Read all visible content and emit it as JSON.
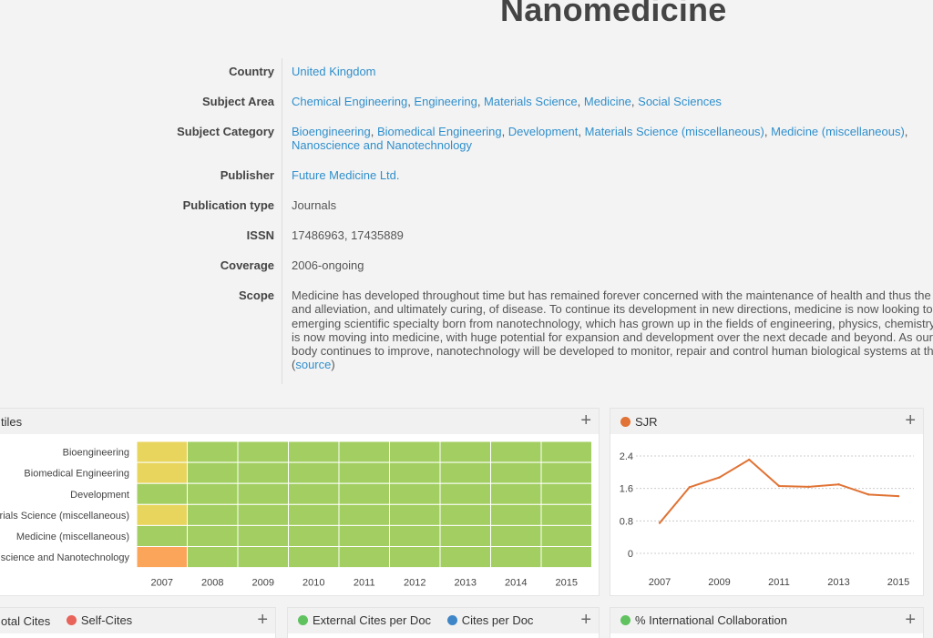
{
  "journal": {
    "title": "Nanomedicine"
  },
  "info": {
    "country": {
      "label": "Country",
      "value": "United Kingdom"
    },
    "subject_area": {
      "label": "Subject Area",
      "items": [
        "Chemical Engineering",
        "Engineering",
        "Materials Science",
        "Medicine",
        "Social Sciences"
      ]
    },
    "subject_category": {
      "label": "Subject Category",
      "items": [
        "Bioengineering",
        "Biomedical Engineering",
        "Development",
        "Materials Science (miscellaneous)",
        "Medicine (miscellaneous)",
        "Nanoscience and Nanotechnology"
      ]
    },
    "publisher": {
      "label": "Publisher",
      "value": "Future Medicine Ltd."
    },
    "publication_type": {
      "label": "Publication type",
      "value": "Journals"
    },
    "issn": {
      "label": "ISSN",
      "value": "17486963, 17435889"
    },
    "coverage": {
      "label": "Coverage",
      "value": "2006-ongoing"
    },
    "scope": {
      "label": "Scope",
      "lines": [
        "Medicine has developed throughout time but has remained forever concerned with the maintenance of health and thus the sc",
        "and alleviation, and ultimately curing, of disease. To continue its development in new directions, medicine is now looking to n",
        "emerging scientific specialty born from nanotechnology, which has grown up in the fields of engineering, physics, chemistry a",
        "is now moving into medicine, with huge potential for expansion and development over the next decade and beyond. As our kn",
        "body continues to improve, nanotechnology will be developed to monitor, repair and control human biological systems at the"
      ],
      "source_open": "(",
      "source_link": "source",
      "source_close": ")"
    }
  },
  "quartiles_card": {
    "title": "tiles",
    "colors": {
      "Q1": "#a3cf62",
      "Q2": "#e8d55e",
      "Q3": "#fba55a"
    }
  },
  "sjr_card": {
    "title": "SJR",
    "color": "#e07335"
  },
  "bottom_cards": {
    "cites": {
      "legend": [
        {
          "label": "otal Cites",
          "color": "#4a90d9"
        },
        {
          "label": "Self-Cites",
          "color": "#e8635a"
        }
      ]
    },
    "cites_per_doc": {
      "legend": [
        {
          "label": "External Cites per Doc",
          "color": "#5fc25f"
        },
        {
          "label": "Cites per Doc",
          "color": "#3f86c8"
        }
      ]
    },
    "collab": {
      "legend": [
        {
          "label": "% International Collaboration",
          "color": "#5fc25f"
        }
      ]
    }
  },
  "plus_label": "+",
  "chart_data": [
    {
      "type": "heatmap",
      "title": "tiles",
      "rows": [
        "Bioengineering",
        "Biomedical Engineering",
        "Development",
        "rials Science (miscellaneous)",
        "Medicine (miscellaneous)",
        "science and Nanotechnology"
      ],
      "columns": [
        "2007",
        "2008",
        "2009",
        "2010",
        "2011",
        "2012",
        "2013",
        "2014",
        "2015"
      ],
      "values": [
        [
          "Q2",
          "Q1",
          "Q1",
          "Q1",
          "Q1",
          "Q1",
          "Q1",
          "Q1",
          "Q1"
        ],
        [
          "Q2",
          "Q1",
          "Q1",
          "Q1",
          "Q1",
          "Q1",
          "Q1",
          "Q1",
          "Q1"
        ],
        [
          "Q1",
          "Q1",
          "Q1",
          "Q1",
          "Q1",
          "Q1",
          "Q1",
          "Q1",
          "Q1"
        ],
        [
          "Q2",
          "Q1",
          "Q1",
          "Q1",
          "Q1",
          "Q1",
          "Q1",
          "Q1",
          "Q1"
        ],
        [
          "Q1",
          "Q1",
          "Q1",
          "Q1",
          "Q1",
          "Q1",
          "Q1",
          "Q1",
          "Q1"
        ],
        [
          "Q3",
          "Q1",
          "Q1",
          "Q1",
          "Q1",
          "Q1",
          "Q1",
          "Q1",
          "Q1"
        ]
      ]
    },
    {
      "type": "line",
      "title": "SJR",
      "x": [
        2007,
        2008,
        2009,
        2010,
        2011,
        2012,
        2013,
        2014,
        2015
      ],
      "xticks": [
        "2007",
        "2009",
        "2011",
        "2013",
        "2015"
      ],
      "series": [
        {
          "name": "SJR",
          "values": [
            0.75,
            1.63,
            1.87,
            2.31,
            1.66,
            1.64,
            1.7,
            1.45,
            1.41
          ]
        }
      ],
      "yticks": [
        "0",
        "0.8",
        "1.6",
        "2.4"
      ],
      "ylim": [
        0,
        2.4
      ],
      "grid": true
    }
  ]
}
